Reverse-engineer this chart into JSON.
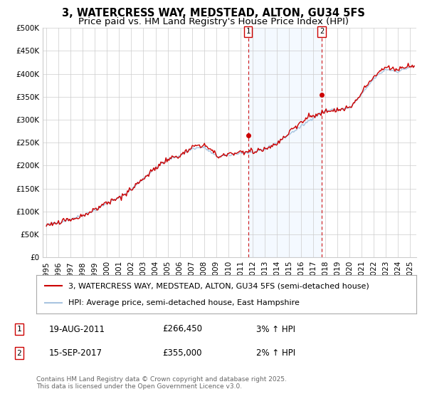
{
  "title": "3, WATERCRESS WAY, MEDSTEAD, ALTON, GU34 5FS",
  "subtitle": "Price paid vs. HM Land Registry's House Price Index (HPI)",
  "ylim": [
    0,
    500000
  ],
  "yticks": [
    0,
    50000,
    100000,
    150000,
    200000,
    250000,
    300000,
    350000,
    400000,
    450000,
    500000
  ],
  "ytick_labels": [
    "£0",
    "£50K",
    "£100K",
    "£150K",
    "£200K",
    "£250K",
    "£300K",
    "£350K",
    "£400K",
    "£450K",
    "£500K"
  ],
  "xlim_start": 1994.7,
  "xlim_end": 2025.5,
  "xticks": [
    1995,
    1996,
    1997,
    1998,
    1999,
    2000,
    2001,
    2002,
    2003,
    2004,
    2005,
    2006,
    2007,
    2008,
    2009,
    2010,
    2011,
    2012,
    2013,
    2014,
    2015,
    2016,
    2017,
    2018,
    2019,
    2020,
    2021,
    2022,
    2023,
    2024,
    2025
  ],
  "hpi_color": "#a8c4e0",
  "price_color": "#cc0000",
  "marker_color": "#cc0000",
  "vline_color": "#cc0000",
  "shade_color": "#ddeeff",
  "background_color": "#ffffff",
  "grid_color": "#cccccc",
  "legend_label_price": "3, WATERCRESS WAY, MEDSTEAD, ALTON, GU34 5FS (semi-detached house)",
  "legend_label_hpi": "HPI: Average price, semi-detached house, East Hampshire",
  "event1_x": 2011.633,
  "event1_y": 266450,
  "event1_label": "1",
  "event1_date": "19-AUG-2011",
  "event1_price": "£266,450",
  "event1_pct": "3% ↑ HPI",
  "event2_x": 2017.708,
  "event2_y": 355000,
  "event2_label": "2",
  "event2_date": "15-SEP-2017",
  "event2_price": "£355,000",
  "event2_pct": "2% ↑ HPI",
  "footer": "Contains HM Land Registry data © Crown copyright and database right 2025.\nThis data is licensed under the Open Government Licence v3.0.",
  "title_fontsize": 10.5,
  "subtitle_fontsize": 9.5,
  "tick_fontsize": 7.5,
  "legend_fontsize": 8,
  "ann_fontsize": 8.5,
  "footer_fontsize": 6.5
}
